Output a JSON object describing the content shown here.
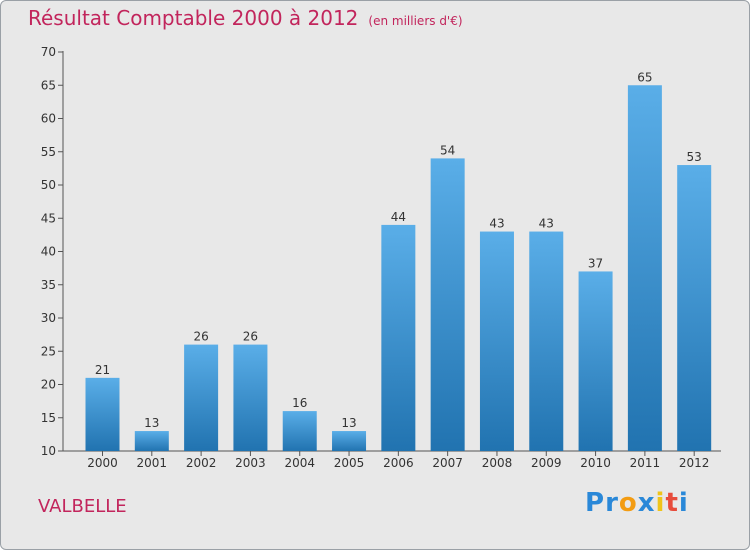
{
  "title": "Résultat Comptable 2000 à 2012",
  "subtitle": "(en milliers d'€)",
  "commune": "VALBELLE",
  "logo": {
    "text": "Proxiti",
    "letters": [
      "P",
      "r",
      "o",
      "x",
      "i",
      "t",
      "i"
    ],
    "colors": [
      "#2a88d8",
      "#2a88d8",
      "#f39c12",
      "#2a88d8",
      "#f0c419",
      "#e74c3c",
      "#2a88d8"
    ]
  },
  "colors": {
    "title": "#c2255c",
    "bar_top": "#5aaee8",
    "bar_bottom": "#2173b0",
    "background": "#e8e8e8"
  },
  "chart_data": {
    "type": "bar",
    "title": "Résultat Comptable 2000 à 2012",
    "subtitle": "(en milliers d'€)",
    "categories": [
      "2000",
      "2001",
      "2002",
      "2003",
      "2004",
      "2005",
      "2006",
      "2007",
      "2008",
      "2009",
      "2010",
      "2011",
      "2012"
    ],
    "values": [
      21,
      13,
      26,
      26,
      16,
      13,
      44,
      54,
      43,
      43,
      37,
      65,
      53
    ],
    "ylim": [
      10,
      70
    ],
    "yticks": [
      10,
      15,
      20,
      25,
      30,
      35,
      40,
      45,
      50,
      55,
      60,
      65,
      70
    ],
    "xlabel": "",
    "ylabel": "",
    "grid": false
  }
}
